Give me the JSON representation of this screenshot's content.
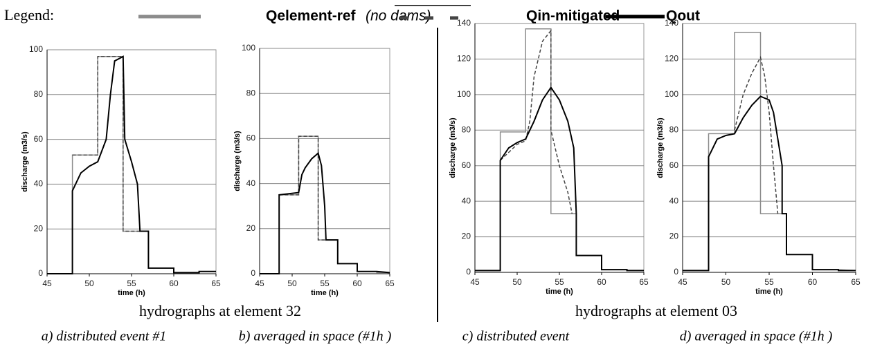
{
  "legend_label": "Legend:",
  "legend_note": "(no dams)",
  "group_captions": [
    "hydrographs at element 32",
    "hydrographs at element 03"
  ],
  "chart_data": [
    {
      "type": "line",
      "caption": "a) distributed event #1",
      "xlabel": "time (h)",
      "ylabel": "discharge (m3/s)",
      "xlim": [
        45,
        65
      ],
      "xticks": [
        45,
        50,
        55,
        60,
        65
      ],
      "ylim": [
        0,
        100
      ],
      "yticks": [
        0,
        20,
        40,
        60,
        80,
        100
      ],
      "grid": true,
      "series": [
        {
          "name": "Qelement-ref",
          "color": "#8c8c8c",
          "style": "solid",
          "x": [
            45,
            48,
            48,
            51,
            51,
            54,
            54,
            57,
            57,
            60,
            60,
            63,
            63,
            65
          ],
          "values": [
            0,
            0,
            53,
            53,
            97,
            97,
            19,
            19,
            2.5,
            2.5,
            0.5,
            0.5,
            1,
            1
          ]
        },
        {
          "name": "Qin-mitigated",
          "color": "#444444",
          "style": "dashed",
          "x": [
            48,
            51,
            51,
            54,
            54,
            56
          ],
          "values": [
            53,
            53,
            97,
            97,
            19,
            19
          ]
        },
        {
          "name": "Qout",
          "color": "#000000",
          "style": "bold",
          "x": [
            45,
            48,
            48,
            49,
            50,
            51,
            52,
            52.5,
            53,
            54,
            54.2,
            55,
            55.7,
            56,
            57,
            57,
            60,
            60,
            63,
            63,
            65
          ],
          "values": [
            0,
            0,
            37,
            45,
            48,
            50,
            60,
            80,
            95,
            97,
            60,
            50,
            40,
            19,
            19,
            2.5,
            2.5,
            0.5,
            0.5,
            1,
            1
          ]
        }
      ]
    },
    {
      "type": "line",
      "caption": "b) averaged in space (#1h )",
      "xlabel": "time (h)",
      "ylabel": "discharge (m3/s)",
      "xlim": [
        45,
        65
      ],
      "xticks": [
        45,
        50,
        55,
        60,
        65
      ],
      "ylim": [
        0,
        100
      ],
      "yticks": [
        0,
        20,
        40,
        60,
        80,
        100
      ],
      "grid": true,
      "series": [
        {
          "name": "Qelement-ref",
          "color": "#8c8c8c",
          "style": "solid",
          "x": [
            45,
            48,
            48,
            51,
            51,
            54,
            54,
            57,
            57,
            60,
            60,
            63,
            63,
            65
          ],
          "values": [
            0,
            0,
            35,
            35,
            61,
            61,
            15,
            15,
            4.5,
            4.5,
            1,
            1,
            0.5,
            0.5
          ]
        },
        {
          "name": "Qin-mitigated",
          "color": "#444444",
          "style": "dashed",
          "x": [
            48,
            51,
            51,
            54,
            54,
            55
          ],
          "values": [
            35,
            35,
            61,
            61,
            15,
            15
          ]
        },
        {
          "name": "Qout",
          "color": "#000000",
          "style": "bold",
          "x": [
            45,
            48,
            48,
            51,
            51.5,
            52,
            53,
            54,
            54.5,
            55,
            55.2,
            57,
            57,
            60,
            60,
            63,
            65
          ],
          "values": [
            0,
            0,
            35,
            36,
            44,
            47,
            51,
            53.5,
            48,
            30,
            15,
            15,
            4.5,
            4.5,
            1,
            1,
            0.5
          ]
        }
      ]
    },
    {
      "type": "line",
      "caption": "c) distributed event",
      "xlabel": "time (h)",
      "ylabel": "discharge (m3/s)",
      "xlim": [
        45,
        65
      ],
      "xticks": [
        45,
        50,
        55,
        60,
        65
      ],
      "ylim": [
        0,
        140
      ],
      "yticks": [
        0,
        20,
        40,
        60,
        80,
        100,
        120,
        140
      ],
      "grid": true,
      "series": [
        {
          "name": "Qelement-ref",
          "color": "#8c8c8c",
          "style": "solid",
          "x": [
            45,
            48,
            48,
            51,
            51,
            54,
            54,
            57,
            57,
            60,
            60,
            63,
            63,
            65
          ],
          "values": [
            1,
            1,
            79,
            79,
            137,
            137,
            33,
            33,
            9.5,
            9.5,
            1.5,
            1.5,
            1,
            1
          ]
        },
        {
          "name": "Qin-mitigated",
          "color": "#444444",
          "style": "dashed",
          "x": [
            48,
            50,
            51,
            51.5,
            52,
            53,
            54,
            54,
            55,
            56,
            56.5
          ],
          "values": [
            63,
            72,
            74,
            85,
            110,
            130,
            136,
            80,
            60,
            45,
            33
          ]
        },
        {
          "name": "Qout",
          "color": "#000000",
          "style": "bold",
          "x": [
            45,
            48,
            48,
            49,
            50,
            51,
            52,
            53,
            54,
            55,
            56,
            56.7,
            57,
            57,
            60,
            60,
            63,
            63,
            65
          ],
          "values": [
            1,
            1,
            63,
            70,
            73,
            75,
            85,
            97,
            104,
            97,
            85,
            70,
            33,
            9.5,
            9.5,
            1.5,
            1.5,
            1,
            1
          ]
        }
      ]
    },
    {
      "type": "line",
      "caption": "d) averaged in space (#1h )",
      "xlabel": "time (h)",
      "ylabel": "discharge (m3/s)",
      "xlim": [
        45,
        65
      ],
      "xticks": [
        45,
        50,
        55,
        60,
        65
      ],
      "ylim": [
        0,
        140
      ],
      "yticks": [
        0,
        20,
        40,
        60,
        80,
        100,
        120,
        140
      ],
      "grid": true,
      "series": [
        {
          "name": "Qelement-ref",
          "color": "#8c8c8c",
          "style": "solid",
          "x": [
            45,
            48,
            48,
            51,
            51,
            54,
            54,
            57,
            57,
            60,
            60,
            63,
            65
          ],
          "values": [
            1,
            1,
            78,
            78,
            135,
            135,
            33,
            33,
            10,
            10,
            1.5,
            1.5,
            1
          ]
        },
        {
          "name": "Qin-mitigated",
          "color": "#444444",
          "style": "dashed",
          "x": [
            51,
            52,
            53,
            54,
            54.5,
            55,
            55.5,
            56
          ],
          "values": [
            80,
            100,
            112,
            121,
            110,
            90,
            60,
            33
          ]
        },
        {
          "name": "Qout",
          "color": "#000000",
          "style": "bold",
          "x": [
            45,
            48,
            48,
            49,
            50,
            51,
            52,
            53,
            54,
            55,
            55.5,
            56,
            56.5,
            56.5,
            57,
            57,
            60,
            60,
            63,
            63,
            65
          ],
          "values": [
            1,
            1,
            65,
            75,
            77,
            78,
            87,
            94,
            99,
            97,
            90,
            75,
            60,
            33,
            33,
            10,
            10,
            1.5,
            1.5,
            1,
            1
          ]
        }
      ]
    }
  ]
}
